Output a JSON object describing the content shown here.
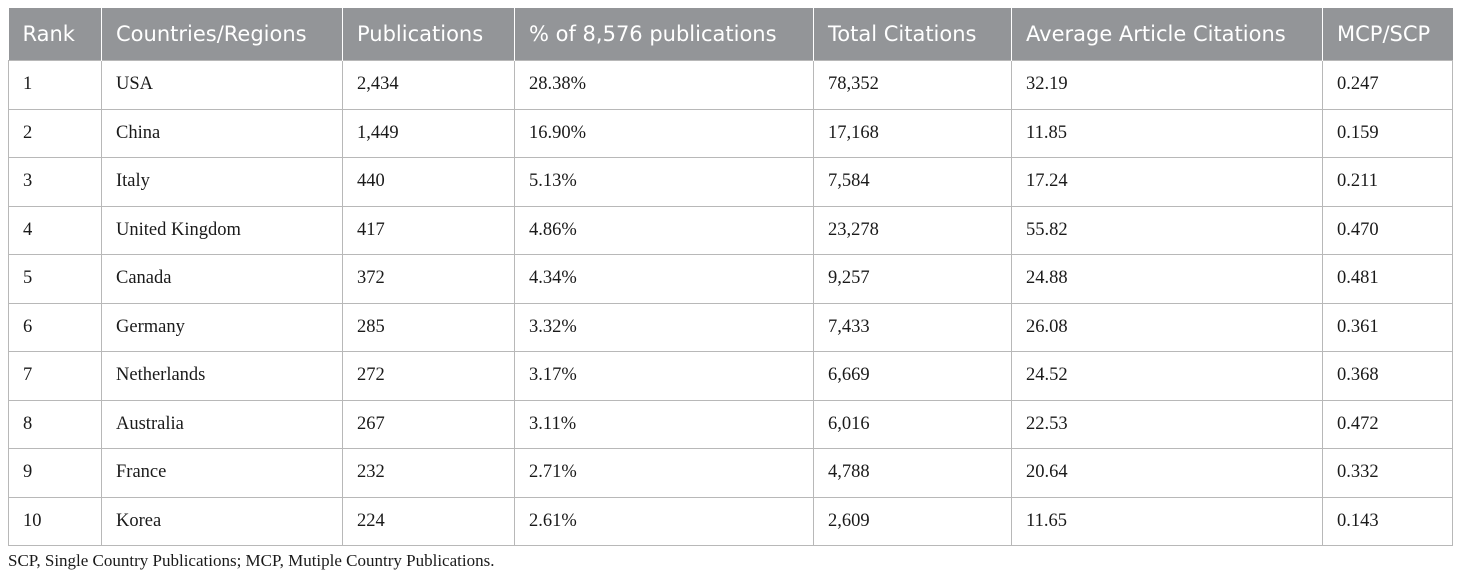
{
  "table": {
    "columns": [
      "Rank",
      "Countries/Regions",
      "Publications",
      "% of 8,576 publications",
      "Total Citations",
      "Average Article Citations",
      "MCP/SCP"
    ],
    "rows": [
      [
        "1",
        "USA",
        "2,434",
        "28.38%",
        "78,352",
        "32.19",
        "0.247"
      ],
      [
        "2",
        "China",
        "1,449",
        "16.90%",
        "17,168",
        "11.85",
        "0.159"
      ],
      [
        "3",
        "Italy",
        "440",
        "5.13%",
        "7,584",
        "17.24",
        "0.211"
      ],
      [
        "4",
        "United Kingdom",
        "417",
        "4.86%",
        "23,278",
        "55.82",
        "0.470"
      ],
      [
        "5",
        "Canada",
        "372",
        "4.34%",
        "9,257",
        "24.88",
        "0.481"
      ],
      [
        "6",
        "Germany",
        "285",
        "3.32%",
        "7,433",
        "26.08",
        "0.361"
      ],
      [
        "7",
        "Netherlands",
        "272",
        "3.17%",
        "6,669",
        "24.52",
        "0.368"
      ],
      [
        "8",
        "Australia",
        "267",
        "3.11%",
        "6,016",
        "22.53",
        "0.472"
      ],
      [
        "9",
        "France",
        "232",
        "2.71%",
        "4,788",
        "20.64",
        "0.332"
      ],
      [
        "10",
        "Korea",
        "224",
        "2.61%",
        "2,609",
        "11.65",
        "0.143"
      ]
    ]
  },
  "footnote": "SCP, Single Country Publications; MCP, Mutiple Country Publications.",
  "colors": {
    "header_bg": "#939598",
    "header_text": "#ffffff",
    "grid": "#b8b8b8"
  }
}
